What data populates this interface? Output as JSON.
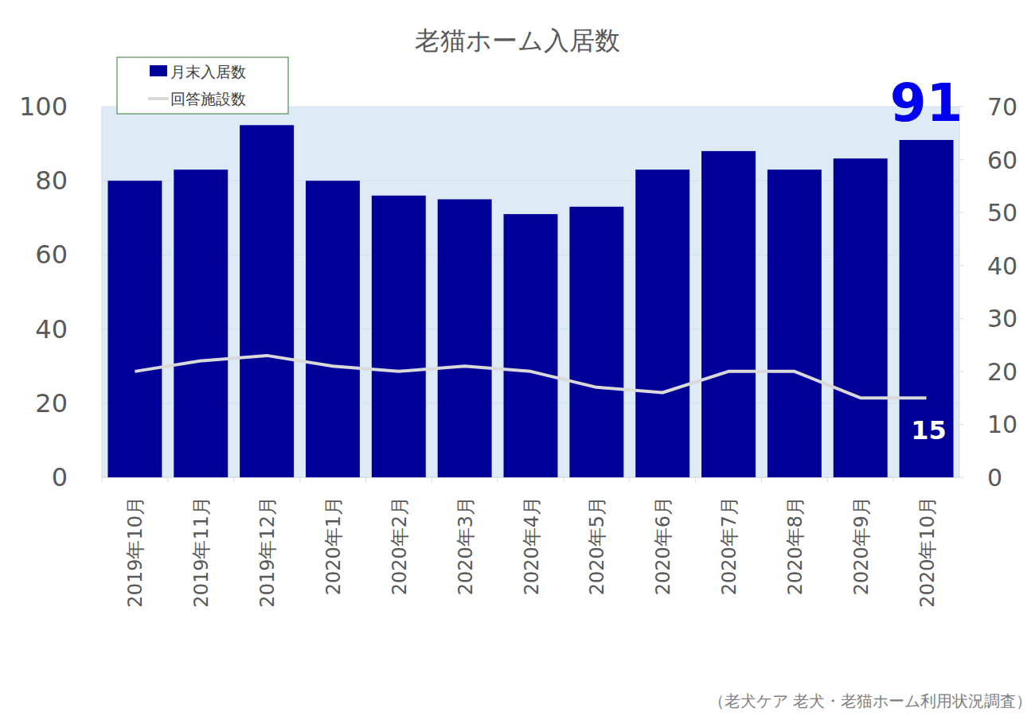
{
  "chart_data": {
    "type": "bar",
    "title": "老猫ホーム入居数",
    "categories": [
      "2019年10月",
      "2019年11月",
      "2019年12月",
      "2020年1月",
      "2020年2月",
      "2020年3月",
      "2020年4月",
      "2020年5月",
      "2020年6月",
      "2020年7月",
      "2020年8月",
      "2020年9月",
      "2020年10月"
    ],
    "series": [
      {
        "name": "月末入居数",
        "type": "bar",
        "color": "#000099",
        "values": [
          80,
          83,
          95,
          80,
          76,
          75,
          71,
          73,
          83,
          88,
          83,
          86,
          91
        ]
      },
      {
        "name": "回答施設数",
        "type": "line",
        "color": "#d9d9d9",
        "axis": "y2",
        "values": [
          20,
          22,
          23,
          21,
          20,
          21,
          20,
          17,
          16,
          20,
          20,
          15,
          15
        ]
      }
    ],
    "ylim": [
      0,
      100
    ],
    "yticks": [
      0,
      20,
      40,
      60,
      80,
      100
    ],
    "y2lim": [
      0,
      70
    ],
    "y2ticks": [
      0,
      10,
      20,
      30,
      40,
      50,
      60,
      70
    ],
    "grid": true,
    "legend": "upper left",
    "annotations": [
      "91",
      "15"
    ],
    "source": "（老犬ケア 老犬・老猫ホーム利用状況調査）"
  }
}
